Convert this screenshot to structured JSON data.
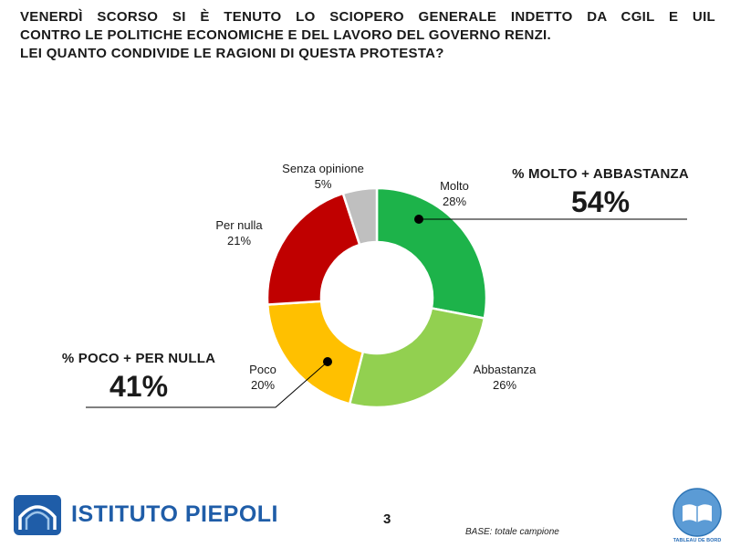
{
  "header": {
    "title_lines": [
      "VENERDÌ SCORSO SI È TENUTO LO SCIOPERO GENERALE INDETTO DA CGIL E UIL",
      "CONTRO LE POLITICHE ECONOMICHE E DEL LAVORO DEL GOVERNO RENZI.",
      "LEI QUANTO CONDIVIDE LE RAGIONI DI QUESTA PROTESTA?"
    ]
  },
  "chart_data": {
    "type": "pie",
    "title": "",
    "categories": [
      "Molto",
      "Abbastanza",
      "Poco",
      "Per nulla",
      "Senza opinione"
    ],
    "values": [
      28,
      26,
      20,
      21,
      5
    ],
    "value_labels": [
      "28%",
      "26%",
      "20%",
      "21%",
      "5%"
    ],
    "colors": [
      "#1db34a",
      "#92d050",
      "#ffc000",
      "#c00000",
      "#bfbfbf"
    ],
    "label_display": [
      "Molto",
      "Abbastanza",
      "Poco",
      "Per nulla",
      "Senza opinione"
    ],
    "hole": true
  },
  "summaries": {
    "top": {
      "caption": "% MOLTO + ABBASTANZA",
      "value": "54%"
    },
    "bottom": {
      "caption": "% POCO + PER NULLA",
      "value": "41%"
    }
  },
  "footer": {
    "logo_text": "ISTITUTO PIEPOLI",
    "page_number": "3",
    "base_note": "BASE: totale campione",
    "badge_label": "TABLEAU DE BORD",
    "logo_icon": "arch-wave-icon",
    "badge_icon": "open-book-icon"
  }
}
